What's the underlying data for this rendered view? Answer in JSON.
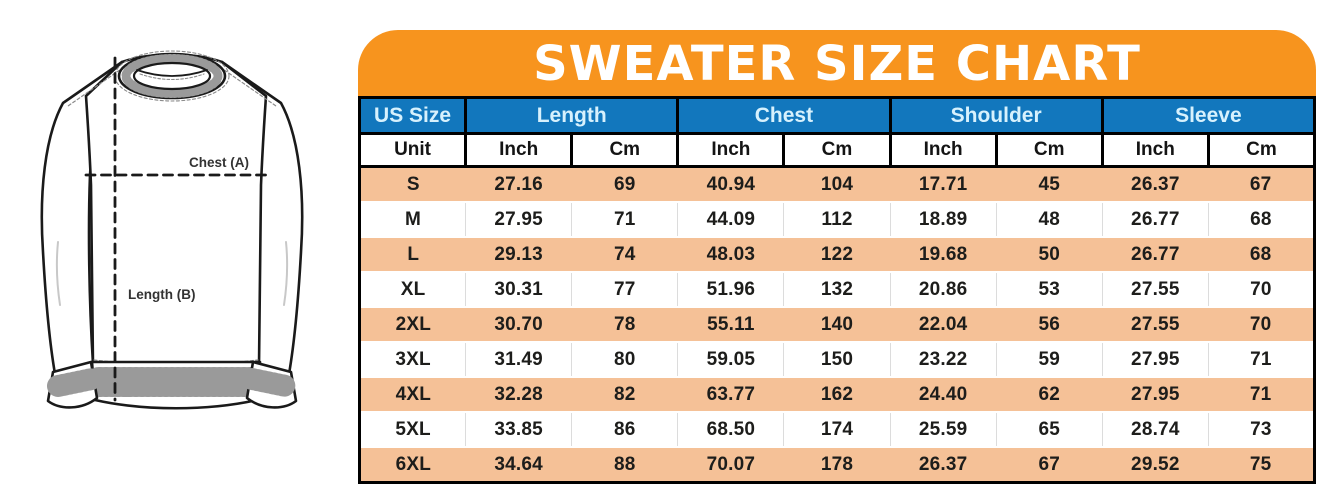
{
  "title": "SWEATER SIZE CHART",
  "diagram": {
    "chest_label": "Chest (A)",
    "length_label": "Length (B)"
  },
  "table": {
    "group_headers": [
      {
        "label": "US Size",
        "span": 1
      },
      {
        "label": "Length",
        "span": 2
      },
      {
        "label": "Chest",
        "span": 2
      },
      {
        "label": "Shoulder",
        "span": 2
      },
      {
        "label": "Sleeve",
        "span": 2
      }
    ],
    "unit_row": [
      "Unit",
      "Inch",
      "Cm",
      "Inch",
      "Cm",
      "Inch",
      "Cm",
      "Inch",
      "Cm"
    ],
    "rows": [
      [
        "S",
        "27.16",
        "69",
        "40.94",
        "104",
        "17.71",
        "45",
        "26.37",
        "67"
      ],
      [
        "M",
        "27.95",
        "71",
        "44.09",
        "112",
        "18.89",
        "48",
        "26.77",
        "68"
      ],
      [
        "L",
        "29.13",
        "74",
        "48.03",
        "122",
        "19.68",
        "50",
        "26.77",
        "68"
      ],
      [
        "XL",
        "30.31",
        "77",
        "51.96",
        "132",
        "20.86",
        "53",
        "27.55",
        "70"
      ],
      [
        "2XL",
        "30.70",
        "78",
        "55.11",
        "140",
        "22.04",
        "56",
        "27.55",
        "70"
      ],
      [
        "3XL",
        "31.49",
        "80",
        "59.05",
        "150",
        "23.22",
        "59",
        "27.95",
        "71"
      ],
      [
        "4XL",
        "32.28",
        "82",
        "63.77",
        "162",
        "24.40",
        "62",
        "27.95",
        "71"
      ],
      [
        "5XL",
        "33.85",
        "86",
        "68.50",
        "174",
        "25.59",
        "65",
        "28.74",
        "73"
      ],
      [
        "6XL",
        "34.64",
        "88",
        "70.07",
        "178",
        "26.37",
        "67",
        "29.52",
        "75"
      ]
    ]
  },
  "colors": {
    "banner_orange": "#F7941E",
    "header_blue": "#1277BD",
    "header_text": "#D7F1FD",
    "row_peach": "#F5C197",
    "text_dark": "#1D1D1B",
    "separator_gray": "#DCDCDC"
  },
  "chart_data": {
    "type": "table",
    "title": "SWEATER SIZE CHART",
    "columns": [
      "US Size",
      "Length (Inch)",
      "Length (Cm)",
      "Chest (Inch)",
      "Chest (Cm)",
      "Shoulder (Inch)",
      "Shoulder (Cm)",
      "Sleeve (Inch)",
      "Sleeve (Cm)"
    ],
    "rows": [
      [
        "S",
        27.16,
        69,
        40.94,
        104,
        17.71,
        45,
        26.37,
        67
      ],
      [
        "M",
        27.95,
        71,
        44.09,
        112,
        18.89,
        48,
        26.77,
        68
      ],
      [
        "L",
        29.13,
        74,
        48.03,
        122,
        19.68,
        50,
        26.77,
        68
      ],
      [
        "XL",
        30.31,
        77,
        51.96,
        132,
        20.86,
        53,
        27.55,
        70
      ],
      [
        "2XL",
        30.7,
        78,
        55.11,
        140,
        22.04,
        56,
        27.55,
        70
      ],
      [
        "3XL",
        31.49,
        80,
        59.05,
        150,
        23.22,
        59,
        27.95,
        71
      ],
      [
        "4XL",
        32.28,
        82,
        63.77,
        162,
        24.4,
        62,
        27.95,
        71
      ],
      [
        "5XL",
        33.85,
        86,
        68.5,
        174,
        25.59,
        65,
        28.74,
        73
      ],
      [
        "6XL",
        34.64,
        88,
        70.07,
        178,
        26.37,
        67,
        29.52,
        75
      ]
    ]
  }
}
